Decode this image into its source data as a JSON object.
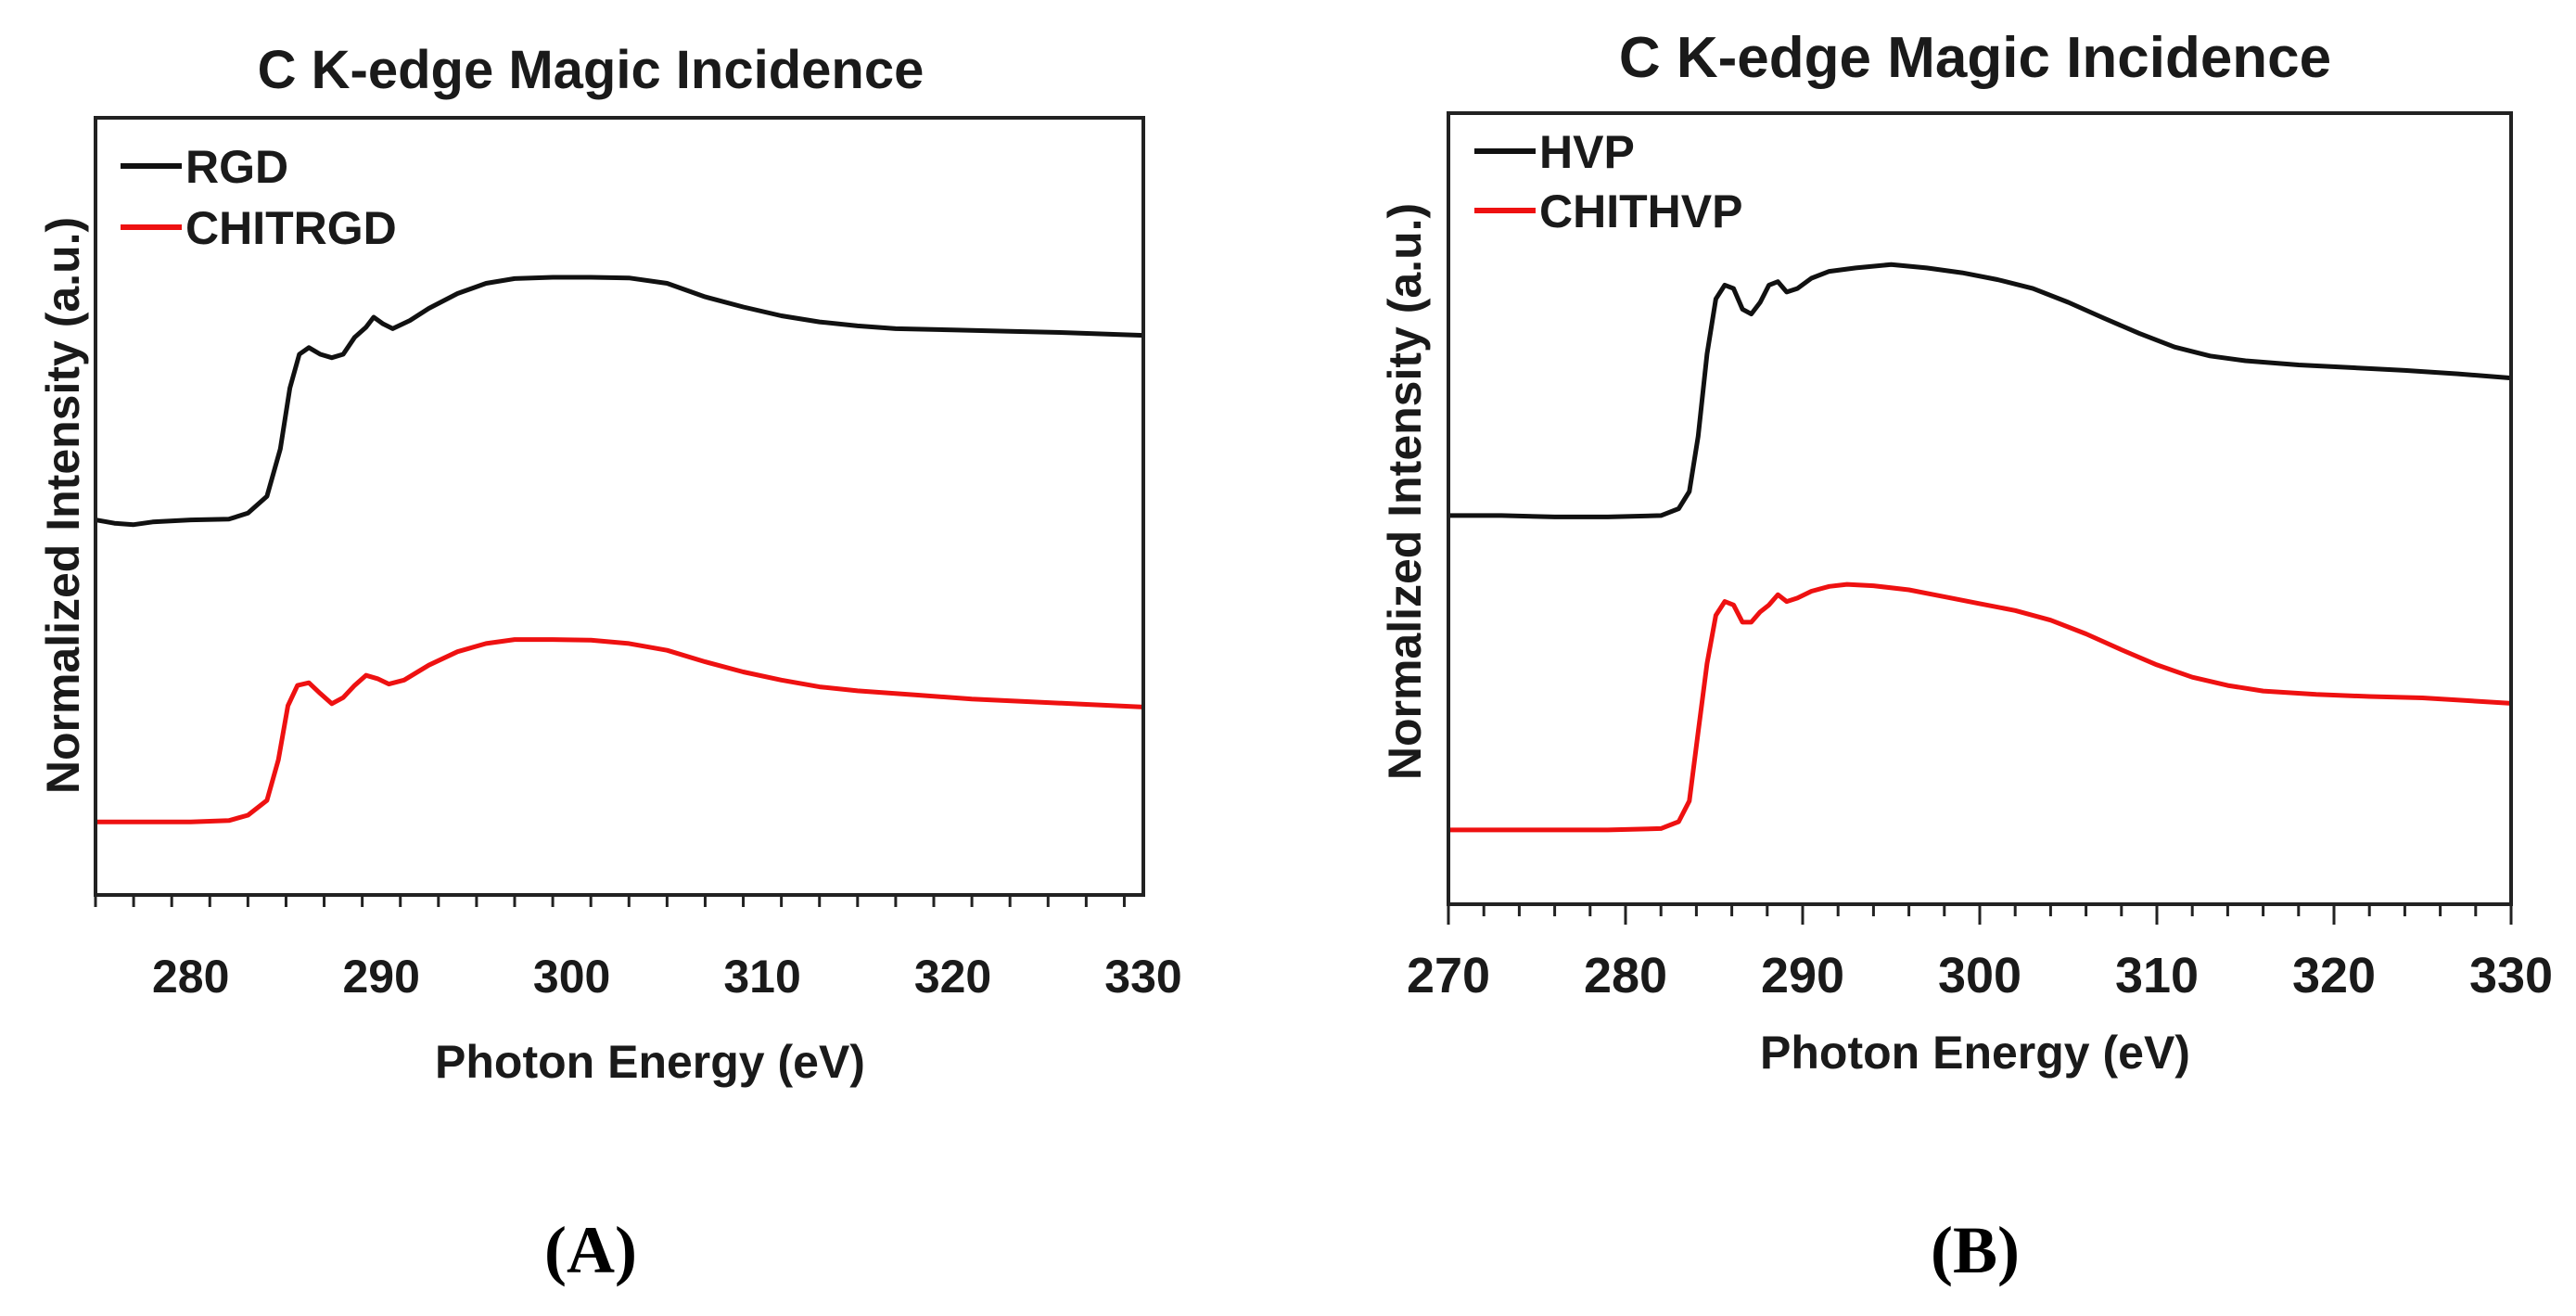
{
  "chart_data": [
    {
      "panel": "A",
      "type": "line",
      "title": "C K-edge Magic Incidence",
      "xlabel": "Photon Energy (eV)",
      "ylabel": "Normalized Intensity (a.u.)",
      "xlim": [
        275,
        330
      ],
      "ylim": [
        0,
        1.15
      ],
      "xticks": [
        280,
        290,
        300,
        310,
        320,
        330
      ],
      "minor_step": 2,
      "yticks_shown": false,
      "legend_position": "top-left",
      "series": [
        {
          "name": "RGD",
          "color": "#111111",
          "points": [
            [
              275,
              0.555
            ],
            [
              276,
              0.55
            ],
            [
              277,
              0.548
            ],
            [
              278,
              0.552
            ],
            [
              280,
              0.555
            ],
            [
              282,
              0.556
            ],
            [
              283,
              0.565
            ],
            [
              284,
              0.59
            ],
            [
              284.7,
              0.66
            ],
            [
              285.2,
              0.75
            ],
            [
              285.7,
              0.8
            ],
            [
              286.2,
              0.81
            ],
            [
              286.8,
              0.8
            ],
            [
              287.4,
              0.795
            ],
            [
              288,
              0.8
            ],
            [
              288.6,
              0.825
            ],
            [
              289.2,
              0.84
            ],
            [
              289.6,
              0.855
            ],
            [
              290.1,
              0.845
            ],
            [
              290.6,
              0.838
            ],
            [
              291.5,
              0.85
            ],
            [
              292.5,
              0.868
            ],
            [
              294,
              0.89
            ],
            [
              295.5,
              0.905
            ],
            [
              297,
              0.912
            ],
            [
              299,
              0.914
            ],
            [
              301,
              0.914
            ],
            [
              303,
              0.913
            ],
            [
              305,
              0.905
            ],
            [
              307,
              0.885
            ],
            [
              309,
              0.87
            ],
            [
              311,
              0.857
            ],
            [
              313,
              0.848
            ],
            [
              315,
              0.842
            ],
            [
              317,
              0.838
            ],
            [
              320,
              0.836
            ],
            [
              323,
              0.834
            ],
            [
              326,
              0.832
            ],
            [
              330,
              0.828
            ]
          ]
        },
        {
          "name": "CHITRGD",
          "color": "#ee1111",
          "points": [
            [
              275,
              0.108
            ],
            [
              278,
              0.108
            ],
            [
              280,
              0.108
            ],
            [
              282,
              0.11
            ],
            [
              283,
              0.118
            ],
            [
              284,
              0.14
            ],
            [
              284.6,
              0.2
            ],
            [
              285.1,
              0.28
            ],
            [
              285.6,
              0.31
            ],
            [
              286.2,
              0.314
            ],
            [
              286.8,
              0.298
            ],
            [
              287.4,
              0.283
            ],
            [
              288,
              0.292
            ],
            [
              288.6,
              0.31
            ],
            [
              289.2,
              0.325
            ],
            [
              289.8,
              0.32
            ],
            [
              290.4,
              0.312
            ],
            [
              291.2,
              0.318
            ],
            [
              292.5,
              0.34
            ],
            [
              294,
              0.36
            ],
            [
              295.5,
              0.372
            ],
            [
              297,
              0.378
            ],
            [
              299,
              0.378
            ],
            [
              301,
              0.377
            ],
            [
              303,
              0.372
            ],
            [
              305,
              0.362
            ],
            [
              307,
              0.345
            ],
            [
              309,
              0.33
            ],
            [
              311,
              0.318
            ],
            [
              313,
              0.308
            ],
            [
              315,
              0.302
            ],
            [
              318,
              0.296
            ],
            [
              321,
              0.29
            ],
            [
              324,
              0.286
            ],
            [
              327,
              0.282
            ],
            [
              330,
              0.278
            ]
          ]
        }
      ]
    },
    {
      "panel": "B",
      "type": "line",
      "title": "C K-edge Magic Incidence",
      "xlabel": "Photon Energy (eV)",
      "ylabel": "Normalized Intensity (a.u.)",
      "xlim": [
        270,
        330
      ],
      "ylim": [
        0,
        1.15
      ],
      "xticks": [
        270,
        280,
        290,
        300,
        310,
        320,
        330
      ],
      "minor_step": 2,
      "yticks_shown": false,
      "legend_position": "top-left",
      "series": [
        {
          "name": "HVP",
          "color": "#111111",
          "points": [
            [
              270,
              0.565
            ],
            [
              273,
              0.565
            ],
            [
              276,
              0.563
            ],
            [
              279,
              0.563
            ],
            [
              282,
              0.565
            ],
            [
              283,
              0.575
            ],
            [
              283.6,
              0.6
            ],
            [
              284.1,
              0.68
            ],
            [
              284.6,
              0.8
            ],
            [
              285.1,
              0.88
            ],
            [
              285.6,
              0.9
            ],
            [
              286.1,
              0.895
            ],
            [
              286.6,
              0.865
            ],
            [
              287.1,
              0.858
            ],
            [
              287.6,
              0.875
            ],
            [
              288.1,
              0.9
            ],
            [
              288.6,
              0.905
            ],
            [
              289.1,
              0.89
            ],
            [
              289.7,
              0.895
            ],
            [
              290.5,
              0.91
            ],
            [
              291.5,
              0.92
            ],
            [
              293,
              0.925
            ],
            [
              295,
              0.93
            ],
            [
              297,
              0.925
            ],
            [
              299,
              0.918
            ],
            [
              301,
              0.908
            ],
            [
              303,
              0.895
            ],
            [
              305,
              0.875
            ],
            [
              307,
              0.852
            ],
            [
              309,
              0.83
            ],
            [
              311,
              0.81
            ],
            [
              313,
              0.797
            ],
            [
              315,
              0.79
            ],
            [
              318,
              0.784
            ],
            [
              321,
              0.78
            ],
            [
              324,
              0.776
            ],
            [
              327,
              0.771
            ],
            [
              330,
              0.765
            ]
          ]
        },
        {
          "name": "CHITHVP",
          "color": "#ee1111",
          "points": [
            [
              270,
              0.108
            ],
            [
              273,
              0.108
            ],
            [
              276,
              0.108
            ],
            [
              279,
              0.108
            ],
            [
              282,
              0.11
            ],
            [
              283,
              0.12
            ],
            [
              283.6,
              0.15
            ],
            [
              284.1,
              0.25
            ],
            [
              284.6,
              0.35
            ],
            [
              285.1,
              0.42
            ],
            [
              285.6,
              0.44
            ],
            [
              286.1,
              0.435
            ],
            [
              286.6,
              0.41
            ],
            [
              287.1,
              0.41
            ],
            [
              287.6,
              0.425
            ],
            [
              288.1,
              0.435
            ],
            [
              288.6,
              0.45
            ],
            [
              289.1,
              0.44
            ],
            [
              289.7,
              0.445
            ],
            [
              290.5,
              0.455
            ],
            [
              291.5,
              0.462
            ],
            [
              292.5,
              0.465
            ],
            [
              294,
              0.463
            ],
            [
              296,
              0.457
            ],
            [
              298,
              0.447
            ],
            [
              300,
              0.437
            ],
            [
              302,
              0.427
            ],
            [
              304,
              0.413
            ],
            [
              306,
              0.393
            ],
            [
              308,
              0.37
            ],
            [
              310,
              0.348
            ],
            [
              312,
              0.33
            ],
            [
              314,
              0.318
            ],
            [
              316,
              0.31
            ],
            [
              319,
              0.305
            ],
            [
              322,
              0.302
            ],
            [
              325,
              0.3
            ],
            [
              330,
              0.292
            ]
          ]
        }
      ]
    }
  ],
  "panel_labels": [
    "(A)",
    "(B)"
  ]
}
